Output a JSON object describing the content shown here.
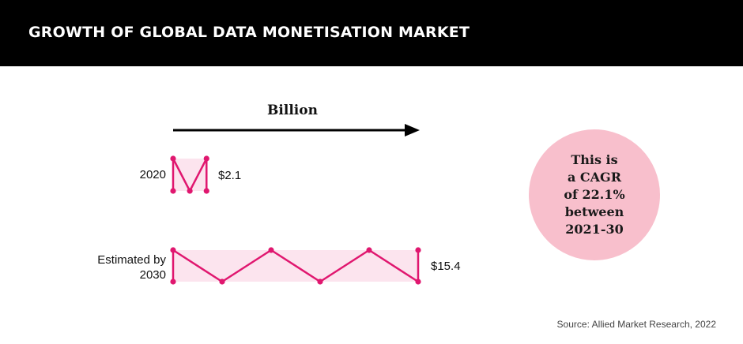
{
  "header": {
    "title": "GROWTH OF GLOBAL DATA MONETISATION MARKET"
  },
  "chart_data": {
    "type": "bar",
    "unit_label": "Billion",
    "categories": [
      "2020",
      "Estimated by 2030"
    ],
    "values": [
      2.1,
      15.4
    ],
    "value_labels": [
      "$2.1",
      "$15.4"
    ],
    "title": "GROWTH OF GLOBAL DATA MONETISATION MARKET",
    "xlabel": "Billion",
    "ylabel": "",
    "xlim": [
      0,
      15.4
    ]
  },
  "callout": {
    "lines": [
      "This is",
      "a CAGR",
      "of 22.1%",
      "between",
      "2021-30"
    ]
  },
  "source": "Source: Allied Market Research, 2022",
  "colors": {
    "accent": "#e0176f",
    "bar_fill": "#fce4ee",
    "circle": "#f8bfcc",
    "header_bg": "#000000"
  }
}
